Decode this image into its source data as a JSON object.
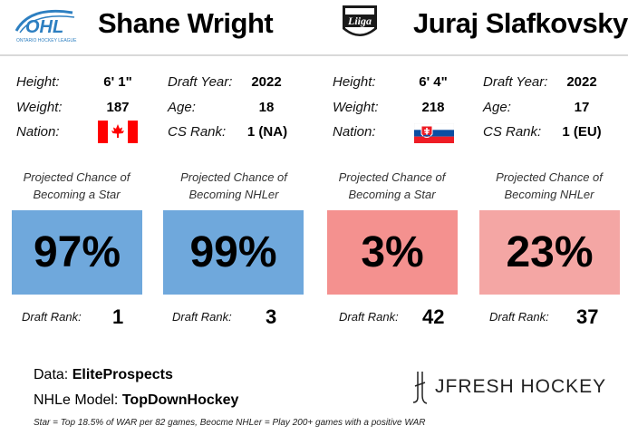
{
  "players": [
    {
      "league_logo_text": "OHL",
      "league_logo_subtext": "ONTARIO HOCKEY LEAGUE",
      "name": "Shane Wright",
      "height_label": "Height:",
      "height": "6' 1\"",
      "weight_label": "Weight:",
      "weight": "187",
      "nation_label": "Nation:",
      "nation_flag": "canada",
      "draft_year_label": "Draft Year:",
      "draft_year": "2022",
      "age_label": "Age:",
      "age": "18",
      "cs_rank_label": "CS Rank:",
      "cs_rank": "1 (NA)",
      "star_header": "Projected Chance of Becoming a Star",
      "star_pct": "97%",
      "star_value": 0.97,
      "star_color": "#6fa8dc",
      "nhler_header": "Projected Chance of Becoming NHLer",
      "nhler_pct": "99%",
      "nhler_value": 0.99,
      "nhler_color": "#6fa8dc",
      "draft_rank_label": "Draft Rank:",
      "star_draft_rank": "1",
      "nhler_draft_rank": "3"
    },
    {
      "league_logo_text": "Liiga",
      "name": "Juraj Slafkovsky",
      "height_label": "Height:",
      "height": "6' 4\"",
      "weight_label": "Weight:",
      "weight": "218",
      "nation_label": "Nation:",
      "nation_flag": "slovakia",
      "draft_year_label": "Draft Year:",
      "draft_year": "2022",
      "age_label": "Age:",
      "age": "17",
      "cs_rank_label": "CS Rank:",
      "cs_rank": "1 (EU)",
      "star_header": "Projected Chance of Becoming a Star",
      "star_pct": "3%",
      "star_value": 0.03,
      "star_color": "#f4918f",
      "nhler_header": "Projected Chance of Becoming NHLer",
      "nhler_pct": "23%",
      "nhler_value": 0.23,
      "nhler_color": "#f4a6a4",
      "draft_rank_label": "Draft Rank:",
      "star_draft_rank": "42",
      "nhler_draft_rank": "37"
    }
  ],
  "footer": {
    "data_label": "Data:",
    "data_source": "EliteProspects",
    "model_label": "NHLe Model:",
    "model_source": "TopDownHockey",
    "brand": "JFRESH HOCKEY",
    "note": "Star = Top 18.5% of WAR per 82 games, Beocme NHLer = Play 200+ games with a positive WAR"
  }
}
